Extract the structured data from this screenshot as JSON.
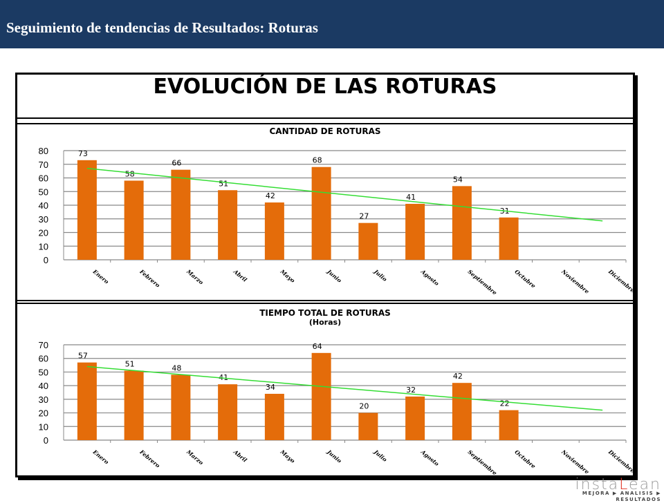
{
  "header": {
    "title": "Seguimiento de tendencias de Resultados: Roturas"
  },
  "frame_title": "EVOLUCIÓN DE LAS ROTURAS",
  "logo": {
    "text": "instaLean",
    "tagline": "MEJORA ▶ ANALISIS ▶ RESULTADOS"
  },
  "chart_data": [
    {
      "type": "bar",
      "title": "CANTIDAD DE ROTURAS",
      "subtitle": "",
      "categories": [
        "Enero",
        "Febrero",
        "Marzo",
        "Abril",
        "Mayo",
        "Junio",
        "Julio",
        "Agosto",
        "Septiembre",
        "Octubre",
        "Noviembre",
        "Diciembre"
      ],
      "values": [
        73,
        58,
        66,
        51,
        42,
        68,
        27,
        41,
        54,
        31,
        null,
        null
      ],
      "trendline": {
        "start": 67,
        "end": 28.5
      },
      "ylim": [
        0,
        80
      ],
      "yticks": [
        0,
        10,
        20,
        30,
        40,
        50,
        60,
        70,
        80
      ],
      "grid": true,
      "bar_color": "#e46c0a",
      "trend_color": "#33dd33"
    },
    {
      "type": "bar",
      "title": "TIEMPO TOTAL DE ROTURAS",
      "subtitle": "(Horas)",
      "categories": [
        "Enero",
        "Febrero",
        "Marzo",
        "Abril",
        "Mayo",
        "Junio",
        "Julio",
        "Agosto",
        "Septiembre",
        "Octubre",
        "Noviembre",
        "Diciembre"
      ],
      "values": [
        57,
        51,
        48,
        41,
        34,
        64,
        20,
        32,
        42,
        22,
        null,
        null
      ],
      "trendline": {
        "start": 54,
        "end": 22
      },
      "ylim": [
        0,
        70
      ],
      "yticks": [
        0,
        10,
        20,
        30,
        40,
        50,
        60,
        70
      ],
      "grid": true,
      "bar_color": "#e46c0a",
      "trend_color": "#33dd33"
    }
  ]
}
